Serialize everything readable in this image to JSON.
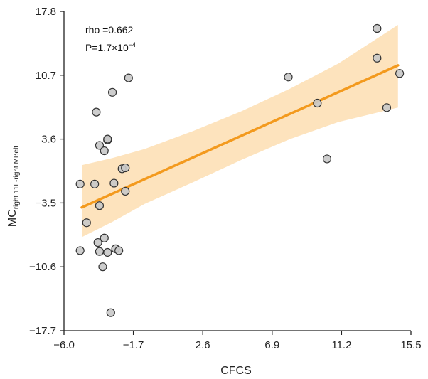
{
  "chart_data": {
    "type": "scatter",
    "xlabel": "CFCS",
    "ylabel": {
      "main": "MC",
      "subscript": "right 11L-right MBelt"
    },
    "xlim": [
      -6.0,
      15.5
    ],
    "ylim": [
      -17.7,
      17.8
    ],
    "xticks": [
      "-6.0",
      "-1.7",
      "2.6",
      "6.9",
      "11.2",
      "15.5"
    ],
    "yticks": [
      "17.8",
      "10.7",
      "3.6",
      "-3.5",
      "-10.6",
      "-17.7"
    ],
    "annotations": {
      "rho": "rho =0.662",
      "p_prefix": "P=1.7×10",
      "p_exponent": "−4"
    },
    "colors": {
      "point_fill": "#c8c8c8",
      "point_stroke": "#333333",
      "fit_line": "#f39a1e",
      "band": "#fde3bd",
      "axis": "#222222"
    },
    "fit": {
      "x": [
        -4.9,
        14.7
      ],
      "y": [
        -4.0,
        11.8
      ]
    },
    "band_upper": {
      "x": [
        -4.9,
        -3.0,
        -1.0,
        2.0,
        5.0,
        8.0,
        11.0,
        14.7
      ],
      "y": [
        0.7,
        1.5,
        2.5,
        4.5,
        6.7,
        9.2,
        12.0,
        16.3
      ]
    },
    "band_lower": {
      "x": [
        -4.9,
        -3.0,
        -1.0,
        2.0,
        5.0,
        8.0,
        11.0,
        14.7
      ],
      "y": [
        -7.3,
        -5.6,
        -3.6,
        -1.2,
        1.3,
        3.6,
        5.5,
        7.1
      ]
    },
    "points": [
      {
        "x": -5.0,
        "y": -1.4
      },
      {
        "x": -4.6,
        "y": -5.7
      },
      {
        "x": -4.1,
        "y": -1.4
      },
      {
        "x": -3.8,
        "y": -3.8
      },
      {
        "x": -3.8,
        "y": 2.9
      },
      {
        "x": -3.5,
        "y": 2.3
      },
      {
        "x": -3.3,
        "y": 3.5
      },
      {
        "x": -3.3,
        "y": 3.6
      },
      {
        "x": -4.0,
        "y": 6.6
      },
      {
        "x": -3.0,
        "y": 8.8
      },
      {
        "x": -2.9,
        "y": -1.3
      },
      {
        "x": -2.4,
        "y": 0.3
      },
      {
        "x": -2.2,
        "y": 0.4
      },
      {
        "x": -2.2,
        "y": -2.2
      },
      {
        "x": -2.0,
        "y": 10.4
      },
      {
        "x": -5.0,
        "y": -8.8
      },
      {
        "x": -3.9,
        "y": -7.9
      },
      {
        "x": -3.8,
        "y": -8.9
      },
      {
        "x": -3.5,
        "y": -7.4
      },
      {
        "x": -3.3,
        "y": -9.0
      },
      {
        "x": -2.8,
        "y": -8.6
      },
      {
        "x": -2.6,
        "y": -8.8
      },
      {
        "x": -3.6,
        "y": -10.6
      },
      {
        "x": -3.1,
        "y": -15.7
      },
      {
        "x": 7.9,
        "y": 10.5
      },
      {
        "x": 9.7,
        "y": 7.6
      },
      {
        "x": 10.3,
        "y": 1.4
      },
      {
        "x": 13.4,
        "y": 12.6
      },
      {
        "x": 13.4,
        "y": 15.9
      },
      {
        "x": 14.0,
        "y": 7.1
      },
      {
        "x": 14.8,
        "y": 10.9
      }
    ]
  }
}
